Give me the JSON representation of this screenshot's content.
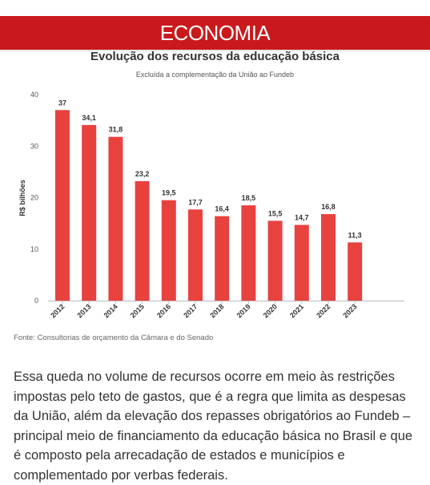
{
  "header": {
    "section_label": "ECONOMIA"
  },
  "chart_data": {
    "type": "bar",
    "title": "Evolução dos recursos da educação básica",
    "subtitle": "Excluída a complementação da União ao Fundeb",
    "ylabel": "R$ bilhões",
    "xlabel": "",
    "ylim": [
      0,
      40
    ],
    "yticks": [
      0,
      10,
      20,
      30,
      40
    ],
    "grid": false,
    "bar_color": "#e8423f",
    "categories": [
      "2012",
      "2013",
      "2014",
      "2015",
      "2016",
      "2017",
      "2018",
      "2019",
      "2020",
      "2021",
      "2022",
      "2023"
    ],
    "values": [
      37,
      34.1,
      31.8,
      23.2,
      19.5,
      17.7,
      16.4,
      18.5,
      15.5,
      14.7,
      16.8,
      11.3
    ],
    "value_labels": [
      "37",
      "34,1",
      "31,8",
      "23,2",
      "19,5",
      "17,7",
      "16,4",
      "18,5",
      "15,5",
      "14,7",
      "16,8",
      "11,3"
    ]
  },
  "source": "Fonte: Consultorias de orçamento da Câmara e do Senado",
  "article": {
    "paragraph": "Essa queda no volume de recursos ocorre em meio às restrições impostas pelo teto de gastos, que é a regra que limita as despesas da União, além da elevação dos repasses obrigatórios ao Fundeb – principal meio de financiamento da educação básica no Brasil e que é composto pela arrecadação de estados e municípios e complementado por verbas federais."
  },
  "colors": {
    "banner": "#c9191c",
    "bars": "#e8423f"
  }
}
